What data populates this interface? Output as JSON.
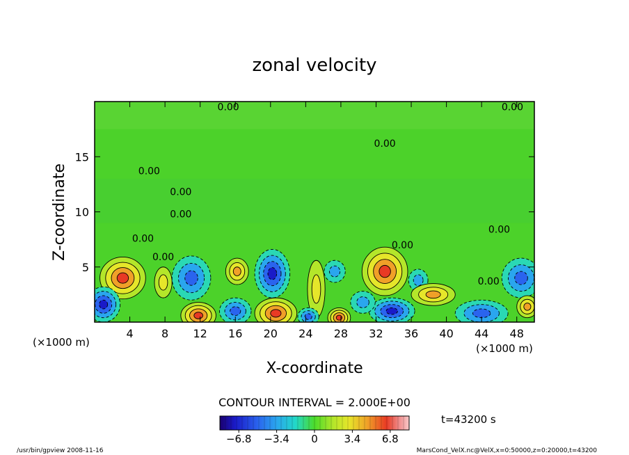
{
  "chart_data": {
    "type": "heatmap",
    "title": "zonal velocity",
    "xlabel": "X-coordinate",
    "ylabel": "Z-coordinate",
    "x_unit_label": "(×1000 m)",
    "z_unit_label": "(×1000 m)",
    "xlim": [
      0,
      50
    ],
    "ylim": [
      0,
      20
    ],
    "x_ticks": [
      4,
      8,
      12,
      16,
      20,
      24,
      28,
      32,
      36,
      40,
      44,
      48
    ],
    "y_ticks": [
      5,
      10,
      15
    ],
    "contour_interval_text": "CONTOUR INTERVAL = 2.000E+00",
    "contour_interval": 2.0,
    "contour_labels": [
      {
        "x": 15.2,
        "z": 19.2,
        "text": "0.00"
      },
      {
        "x": 47.5,
        "z": 19.2,
        "text": "0.00"
      },
      {
        "x": 33.0,
        "z": 15.9,
        "text": "0.00"
      },
      {
        "x": 6.2,
        "z": 13.4,
        "text": "0.00"
      },
      {
        "x": 9.8,
        "z": 11.5,
        "text": "0.00"
      },
      {
        "x": 9.8,
        "z": 9.5,
        "text": "0.00"
      },
      {
        "x": 5.5,
        "z": 7.3,
        "text": "0.00"
      },
      {
        "x": 7.8,
        "z": 5.6,
        "text": "0.00"
      },
      {
        "x": 35.0,
        "z": 6.7,
        "text": "0.00"
      },
      {
        "x": 46.0,
        "z": 8.1,
        "text": "0.00"
      },
      {
        "x": 44.8,
        "z": 3.4,
        "text": "0.00"
      }
    ],
    "features": [
      {
        "x": 3.2,
        "z": 4.0,
        "value": 7.5,
        "rx": 2.6,
        "rz": 1.9
      },
      {
        "x": 1.0,
        "z": 1.6,
        "value": -6.0,
        "rx": 1.9,
        "rz": 1.6
      },
      {
        "x": 11.0,
        "z": 4.0,
        "value": -5.5,
        "rx": 2.2,
        "rz": 2.0
      },
      {
        "x": 11.8,
        "z": 0.6,
        "value": 6.5,
        "rx": 2.0,
        "rz": 1.2
      },
      {
        "x": 16.2,
        "z": 4.6,
        "value": 4.5,
        "rx": 1.3,
        "rz": 1.2
      },
      {
        "x": 16.0,
        "z": 1.0,
        "value": -4.0,
        "rx": 1.8,
        "rz": 1.2
      },
      {
        "x": 20.2,
        "z": 4.4,
        "value": -6.5,
        "rx": 2.0,
        "rz": 2.2
      },
      {
        "x": 20.6,
        "z": 0.8,
        "value": 7.5,
        "rx": 2.4,
        "rz": 1.4
      },
      {
        "x": 25.2,
        "z": 3.0,
        "value": 3.0,
        "rx": 1.0,
        "rz": 2.6
      },
      {
        "x": 27.3,
        "z": 4.6,
        "value": -3.0,
        "rx": 1.2,
        "rz": 1.0
      },
      {
        "x": 27.8,
        "z": 0.4,
        "value": 6.0,
        "rx": 1.3,
        "rz": 0.9
      },
      {
        "x": 24.3,
        "z": 0.5,
        "value": -4.0,
        "rx": 1.2,
        "rz": 0.8
      },
      {
        "x": 33.0,
        "z": 4.6,
        "value": 7.5,
        "rx": 2.6,
        "rz": 2.2
      },
      {
        "x": 33.8,
        "z": 1.0,
        "value": -7.0,
        "rx": 2.6,
        "rz": 1.2
      },
      {
        "x": 36.8,
        "z": 3.8,
        "value": -3.0,
        "rx": 1.1,
        "rz": 1.0
      },
      {
        "x": 38.5,
        "z": 2.5,
        "value": 4.5,
        "rx": 2.5,
        "rz": 1.0
      },
      {
        "x": 44.0,
        "z": 0.8,
        "value": -4.5,
        "rx": 3.0,
        "rz": 1.2
      },
      {
        "x": 48.5,
        "z": 4.0,
        "value": -5.5,
        "rx": 2.2,
        "rz": 1.8
      },
      {
        "x": 49.2,
        "z": 1.4,
        "value": 5.0,
        "rx": 1.2,
        "rz": 1.0
      },
      {
        "x": 7.8,
        "z": 3.6,
        "value": 3.0,
        "rx": 1.0,
        "rz": 1.4
      },
      {
        "x": 30.5,
        "z": 1.8,
        "value": -2.5,
        "rx": 1.4,
        "rz": 1.0
      }
    ]
  },
  "colorbar": {
    "min": -8.5,
    "max": 8.5,
    "tick_values": [
      -6.8,
      -3.4,
      0,
      3.4,
      6.8
    ],
    "tick_labels": [
      "−6.8",
      "−3.4",
      "0",
      "3.4",
      "6.8"
    ]
  },
  "time_label": "t=43200 s",
  "footer_left": "/usr/bin/gpview   2008-11-16",
  "footer_right": "MarsCond_VelX.nc@VelX,x=0:50000,z=0:20000,t=43200"
}
